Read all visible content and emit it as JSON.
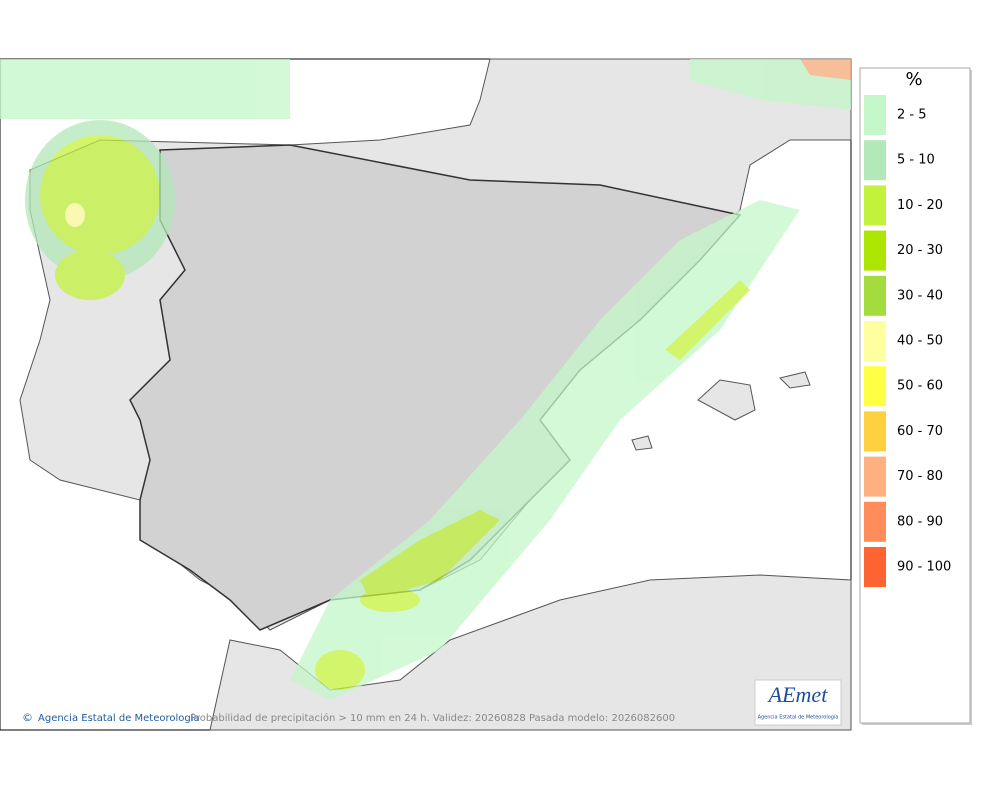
{
  "legend": {
    "title": "%",
    "items": [
      {
        "label": "2 - 5",
        "color": "#c4f7c9"
      },
      {
        "label": "5 - 10",
        "color": "#b3e8b8"
      },
      {
        "label": "10 - 20",
        "color": "#c3f23c"
      },
      {
        "label": "20 - 30",
        "color": "#ace600"
      },
      {
        "label": "30 - 40",
        "color": "#a3dc3c"
      },
      {
        "label": "40 - 50",
        "color": "#ffffa0"
      },
      {
        "label": "50 - 60",
        "color": "#ffff44"
      },
      {
        "label": "60 - 70",
        "color": "#ffd040"
      },
      {
        "label": "70 - 80",
        "color": "#ffb080"
      },
      {
        "label": "80 - 90",
        "color": "#ff8c5a"
      },
      {
        "label": "90 - 100",
        "color": "#ff6432"
      }
    ]
  },
  "footer": {
    "credit": "Agencia Estatal de Meteorología",
    "caption": "Probabilidad de precipitación > 10 mm en 24 h. Validez: 20260828 Pasada modelo: 2026082600"
  },
  "logo": {
    "text": "AEmet",
    "subtitle": "Agencia Estatal de Meteorología"
  }
}
